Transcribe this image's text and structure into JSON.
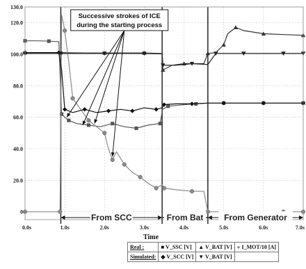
{
  "chart_data": {
    "type": "line",
    "title": "",
    "xlabel": "Time",
    "ylabel": "",
    "xlim": [
      0,
      7
    ],
    "ylim": [
      -5,
      130
    ],
    "x_ticks": [
      "0.0s",
      "1.0s",
      "2.0s",
      "3.0s",
      "4.0s",
      "5.0s",
      "6.0s",
      "7.0s"
    ],
    "y_ticks": [
      "0",
      "20.0",
      "40.0",
      "60.0",
      "80.0",
      "100.0",
      "120.0",
      "130.0"
    ],
    "y_tick_values": [
      0,
      20,
      40,
      60,
      80,
      100,
      120,
      130
    ],
    "grid": true,
    "legend_position": "bottom-right",
    "phase_boundaries_x": [
      0.9,
      3.45,
      4.6
    ],
    "regions": [
      {
        "label": "From SCC",
        "x0": 0.9,
        "x1": 3.45
      },
      {
        "label": "From Bat",
        "x0": 3.45,
        "x1": 4.6
      },
      {
        "label": "From Generator",
        "x0": 4.6,
        "x1": 7.0
      }
    ],
    "annotation": {
      "line1": "Successive strokes of ICE",
      "line2": "during the starting process",
      "anchor_x": 2.1,
      "anchor_y": 124
    },
    "legend": {
      "rows": [
        {
          "label": "Real :",
          "entries": [
            "V_SSC [V]",
            "V_BAT [V]",
            "I_MOT/10 [A]"
          ]
        },
        {
          "label": "Simulated:",
          "entries": [
            "V_SCC [V]",
            "V_BAT [V]",
            ""
          ]
        }
      ]
    },
    "series": [
      {
        "name": "V_SSC [V]",
        "group": "Real",
        "marker": "square",
        "color": "#555555",
        "x": [
          0,
          0.3,
          0.6,
          0.85,
          0.92,
          1.0,
          1.1,
          1.3,
          1.6,
          1.9,
          2.2,
          2.5,
          2.8,
          3.1,
          3.4,
          3.46,
          3.6,
          4.0,
          4.3,
          4.6,
          5.0,
          5.5,
          6.0,
          6.5,
          7.0
        ],
        "y": [
          108.5,
          108.5,
          108.3,
          108.0,
          62,
          60,
          58,
          56,
          55,
          54,
          56,
          54,
          53,
          55,
          56,
          65,
          67,
          68,
          68.5,
          69,
          69,
          69,
          69,
          69,
          69
        ]
      },
      {
        "name": "V_BAT [V]",
        "group": "Real",
        "marker": "triangle-up",
        "color": "#333333",
        "x": [
          0,
          0.5,
          0.9,
          1.5,
          2.0,
          2.5,
          3.0,
          3.45,
          3.47,
          3.7,
          4.0,
          4.5,
          4.6,
          4.8,
          5.0,
          5.1,
          5.3,
          5.5,
          6.0,
          6.5,
          7.0
        ],
        "y": [
          101,
          101,
          101,
          100.8,
          100.8,
          100.8,
          100.8,
          100.5,
          90,
          93,
          94,
          94,
          100.5,
          101,
          106,
          113,
          117,
          115,
          113,
          112.5,
          112
        ]
      },
      {
        "name": "I_MOT/10 [A]",
        "group": "Real",
        "marker": "circle",
        "color": "#8a8a8a",
        "x": [
          0,
          0.5,
          0.88,
          0.92,
          1.0,
          1.1,
          1.2,
          1.4,
          1.6,
          1.8,
          2.0,
          2.1,
          2.2,
          2.3,
          2.5,
          2.7,
          2.9,
          3.1,
          3.3,
          3.45,
          3.5,
          3.8,
          4.2,
          4.5,
          4.6,
          5.5,
          6.5,
          7.0
        ],
        "y": [
          0,
          0,
          0,
          125,
          115,
          95,
          72,
          65,
          58,
          54,
          50,
          40,
          33,
          38,
          30,
          25,
          22,
          18,
          15,
          17,
          15,
          14,
          13,
          13,
          0,
          0,
          0,
          0
        ]
      },
      {
        "name": "V_SCC [V]",
        "group": "Simulated",
        "marker": "diamond",
        "color": "#111111",
        "x": [
          0,
          0.5,
          0.85,
          0.92,
          1.0,
          1.2,
          1.5,
          1.8,
          2.1,
          2.4,
          2.7,
          3.0,
          3.3,
          3.45,
          3.5,
          3.8,
          4.2,
          4.6,
          5.0,
          5.5,
          6.0,
          6.5,
          7.0
        ],
        "y": [
          101,
          101,
          101,
          90,
          65,
          63,
          65,
          63,
          64,
          65,
          64,
          66,
          65,
          66,
          68,
          68.5,
          68.5,
          69,
          69,
          69,
          69,
          69,
          69
        ]
      },
      {
        "name": "V_BAT [V]",
        "group": "Simulated",
        "marker": "triangle-down",
        "color": "#222222",
        "x": [
          0,
          0.5,
          0.9,
          1.5,
          2.0,
          2.5,
          3.0,
          3.45,
          3.47,
          3.8,
          4.2,
          4.6,
          4.8,
          5.0,
          5.5,
          6.0,
          6.5,
          7.0
        ],
        "y": [
          100.5,
          100.5,
          100.5,
          100.5,
          100.5,
          100.5,
          100.5,
          100.2,
          93,
          93,
          94,
          93.5,
          100.5,
          100.5,
          100.5,
          100.5,
          100.5,
          100.5
        ]
      }
    ]
  }
}
